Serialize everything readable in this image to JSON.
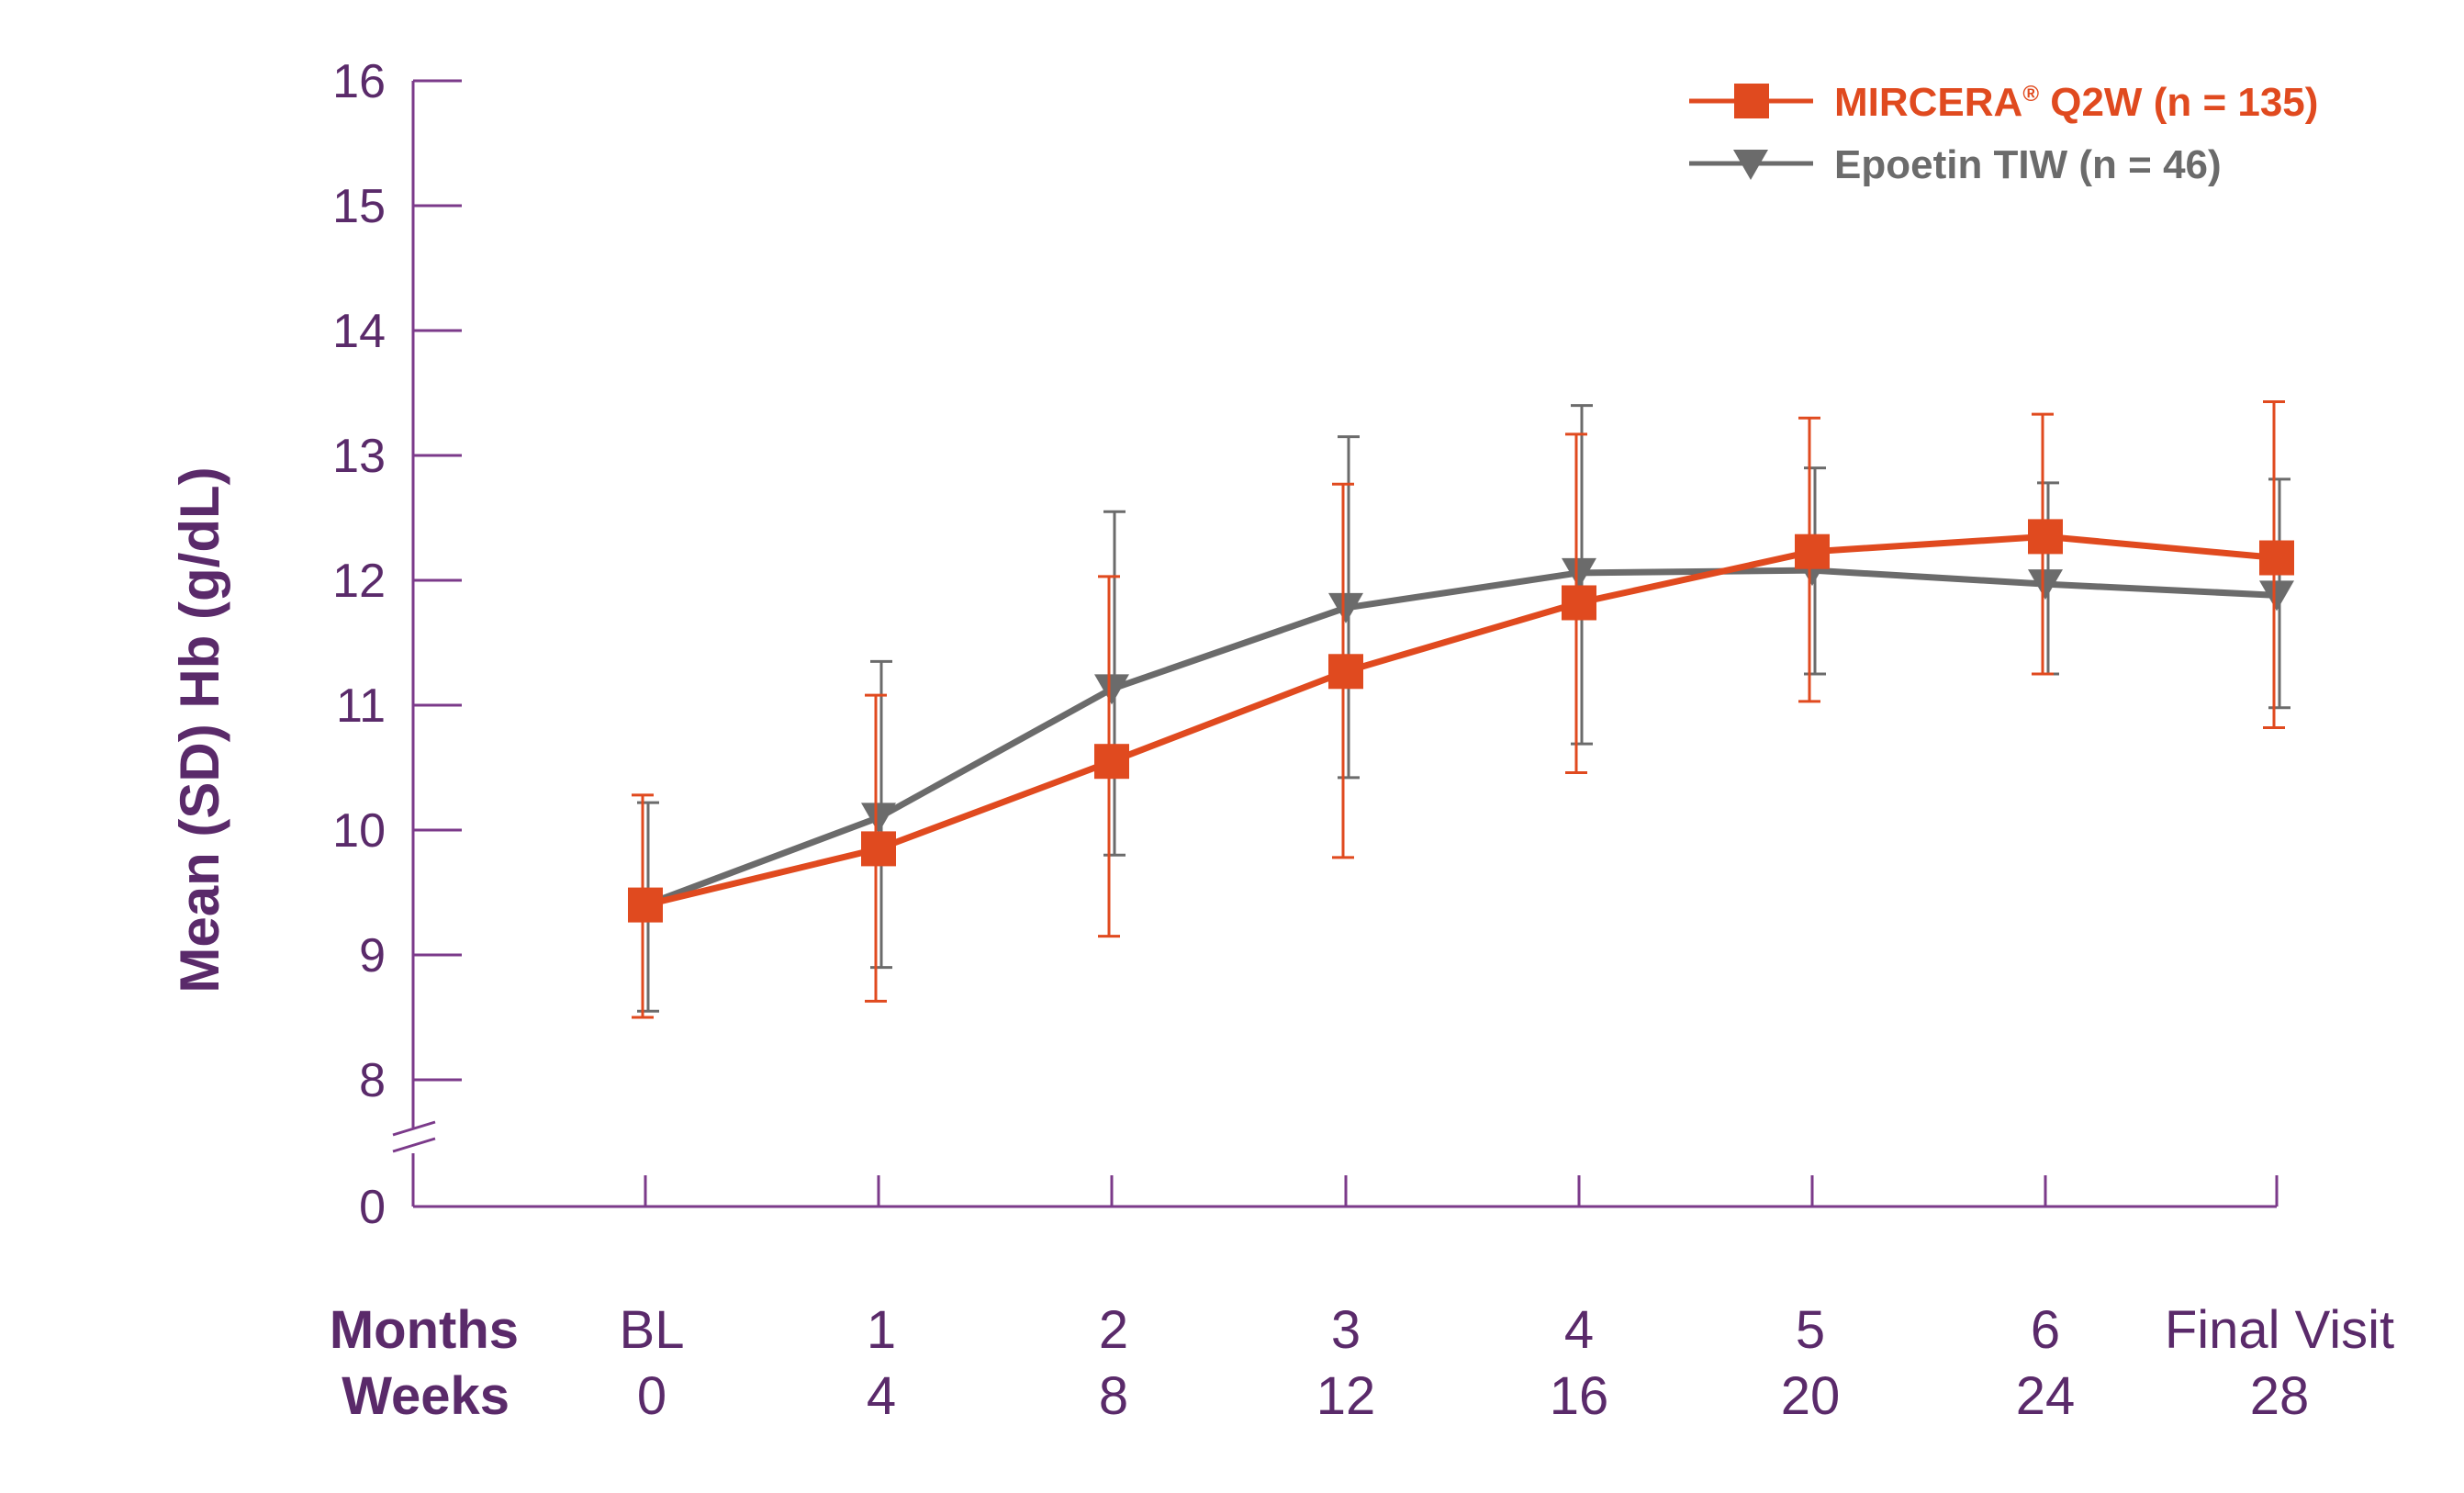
{
  "chart_data": {
    "type": "line",
    "ylabel": "Mean (SD) Hb (g/dL)",
    "y_ticks": [
      "0",
      "8",
      "9",
      "10",
      "11",
      "12",
      "13",
      "14",
      "15",
      "16"
    ],
    "ylim": [
      8,
      16
    ],
    "axis_break": true,
    "row_labels": {
      "months": "Months",
      "weeks": "Weeks"
    },
    "categories_months": [
      "BL",
      "1",
      "2",
      "3",
      "4",
      "5",
      "6",
      "Final Visit"
    ],
    "categories_weeks": [
      "0",
      "4",
      "8",
      "12",
      "16",
      "20",
      "24",
      "28"
    ],
    "legend_position": "top-right",
    "series": [
      {
        "name": "MIRCERA",
        "name_sup": "®",
        "name_rest": " Q2W (n = 135)",
        "color": "#e04a1f",
        "marker": "square",
        "values": [
          9.4,
          9.85,
          10.55,
          11.27,
          11.82,
          12.23,
          12.35,
          12.18
        ],
        "err_low": [
          8.5,
          8.63,
          9.15,
          9.78,
          10.46,
          11.03,
          11.25,
          10.82
        ],
        "err_high": [
          10.28,
          11.08,
          12.03,
          12.77,
          13.17,
          13.3,
          13.33,
          13.43
        ]
      },
      {
        "name": "Epoetin TIW (n = 46)",
        "color": "#6b6b6b",
        "marker": "triangle-down",
        "values": [
          9.4,
          10.1,
          11.13,
          11.78,
          12.06,
          12.08,
          11.97,
          11.88
        ],
        "err_low": [
          8.55,
          8.9,
          9.8,
          10.42,
          10.69,
          11.25,
          11.25,
          10.98
        ],
        "err_high": [
          10.22,
          11.35,
          12.55,
          13.15,
          13.4,
          12.9,
          12.78,
          12.81
        ]
      }
    ]
  }
}
